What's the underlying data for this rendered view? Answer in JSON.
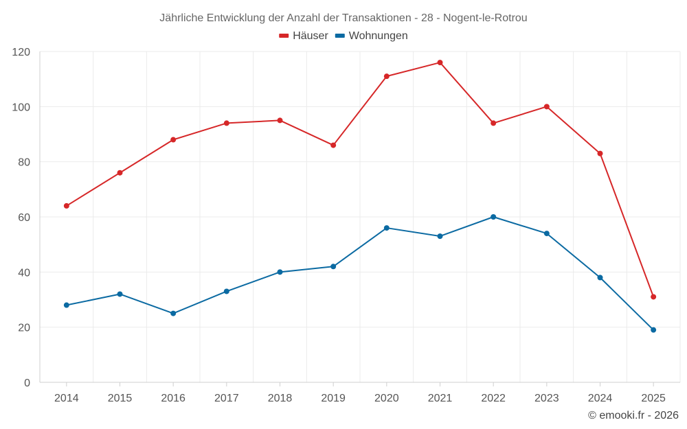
{
  "chart_data": {
    "type": "line",
    "title": "Jährliche Entwicklung der Anzahl der Transaktionen - 28 - Nogent-le-Rotrou",
    "categories": [
      "2014",
      "2015",
      "2016",
      "2017",
      "2018",
      "2019",
      "2020",
      "2021",
      "2022",
      "2023",
      "2024",
      "2025"
    ],
    "series": [
      {
        "name": "Häuser",
        "color": "#d62728",
        "values": [
          64,
          76,
          88,
          94,
          95,
          86,
          111,
          116,
          94,
          100,
          83,
          31
        ]
      },
      {
        "name": "Wohnungen",
        "color": "#0b6aa2",
        "values": [
          28,
          32,
          25,
          33,
          40,
          42,
          56,
          53,
          60,
          54,
          38,
          19
        ]
      }
    ],
    "y_ticks": [
      0,
      20,
      40,
      60,
      80,
      100,
      120
    ],
    "ylim": [
      0,
      120
    ],
    "xlabel": "",
    "ylabel": "",
    "grid": true,
    "legend_position": "top-center"
  },
  "credit": "© emooki.fr - 2026"
}
